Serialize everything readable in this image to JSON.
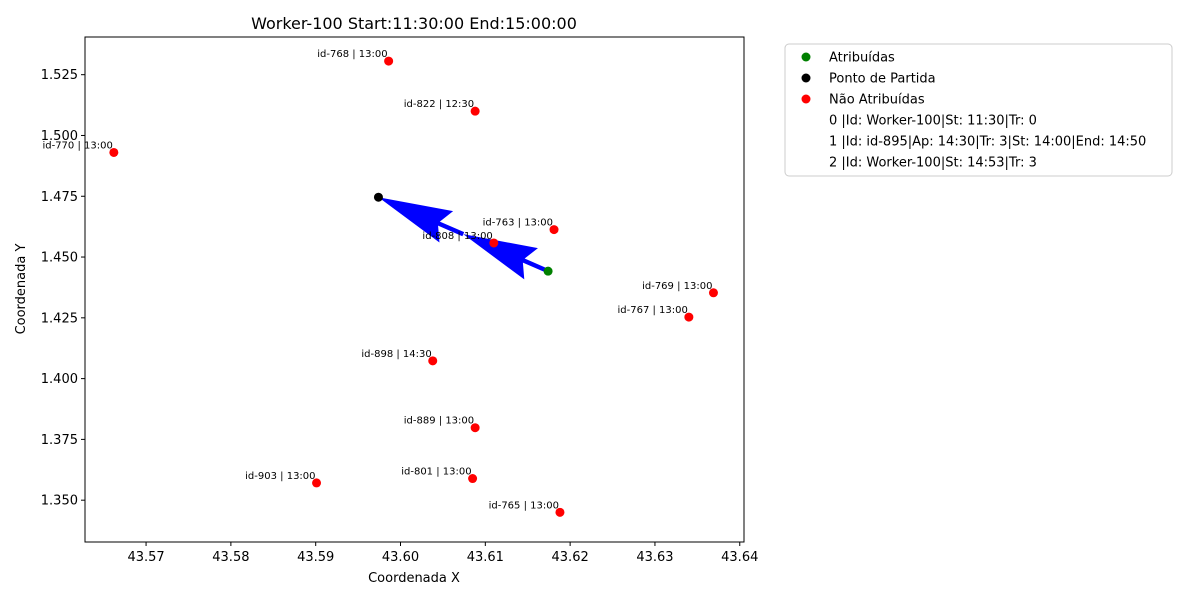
{
  "chart_data": {
    "type": "scatter",
    "title": "Worker-100 Start:11:30:00 End:15:00:00",
    "xlabel": "Coordenada X",
    "ylabel": "Coordenada Y",
    "xlim": [
      43.5628,
      43.6405
    ],
    "ylim": [
      1.3328,
      1.5405
    ],
    "xticks": [
      "43.57",
      "43.58",
      "43.59",
      "43.60",
      "43.61",
      "43.62",
      "43.63",
      "43.64"
    ],
    "xtick_values": [
      43.57,
      43.58,
      43.59,
      43.6,
      43.61,
      43.62,
      43.63,
      43.64
    ],
    "yticks": [
      "1.350",
      "1.375",
      "1.400",
      "1.425",
      "1.450",
      "1.475",
      "1.500",
      "1.525"
    ],
    "ytick_values": [
      1.35,
      1.375,
      1.4,
      1.425,
      1.45,
      1.475,
      1.5,
      1.525
    ],
    "grid": false,
    "legend_position": "outside-right-top",
    "series": [
      {
        "name": "Atribuídas",
        "color": "#008000",
        "points": [
          {
            "x": 43.6174,
            "y": 1.4442,
            "label": ""
          }
        ]
      },
      {
        "name": "Ponto de Partida",
        "color": "#000000",
        "points": [
          {
            "x": 43.5974,
            "y": 1.4746,
            "label": ""
          }
        ]
      },
      {
        "name": "Não Atribuídas",
        "color": "#ff0000",
        "points": [
          {
            "x": 43.5986,
            "y": 1.5306,
            "label": "id-768 | 13:00"
          },
          {
            "x": 43.6088,
            "y": 1.51,
            "label": "id-822 | 12:30"
          },
          {
            "x": 43.5662,
            "y": 1.493,
            "label": "id-770 | 13:00"
          },
          {
            "x": 43.6181,
            "y": 1.4613,
            "label": "id-763 | 13:00"
          },
          {
            "x": 43.611,
            "y": 1.4558,
            "label": "id-808 | 13:00"
          },
          {
            "x": 43.6369,
            "y": 1.4353,
            "label": "id-769 | 13:00"
          },
          {
            "x": 43.634,
            "y": 1.4253,
            "label": "id-767 | 13:00"
          },
          {
            "x": 43.6038,
            "y": 1.4073,
            "label": "id-898 | 14:30"
          },
          {
            "x": 43.6088,
            "y": 1.3798,
            "label": "id-889 | 13:00"
          },
          {
            "x": 43.5901,
            "y": 1.3571,
            "label": "id-903 | 13:00"
          },
          {
            "x": 43.6085,
            "y": 1.3589,
            "label": "id-801 | 13:00"
          },
          {
            "x": 43.6188,
            "y": 1.345,
            "label": "id-765 | 13:00"
          }
        ]
      }
    ],
    "arrows": [
      {
        "from": [
          43.5974,
          1.4746
        ],
        "to": [
          43.6174,
          1.4442
        ],
        "color": "#0000ff"
      }
    ],
    "legend_extra_lines": [
      "0 |Id: Worker-100|St: 11:30|Tr: 0",
      "1 |Id: id-895|Ap: 14:30|Tr: 3|St: 14:00|End: 14:50",
      "2 |Id: Worker-100|St: 14:53|Tr: 3"
    ]
  }
}
